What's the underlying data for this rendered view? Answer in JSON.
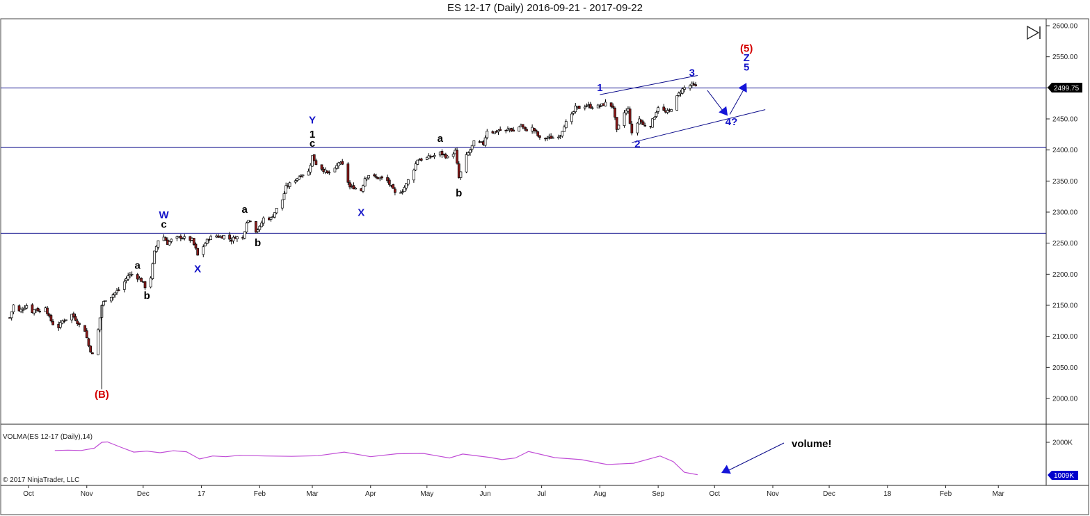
{
  "window": {
    "title": "ES 12-17 (Daily)  2016-09-21 - 2017-09-22",
    "copyright": "© 2017 NinjaTrader, LLC"
  },
  "toolbar": {
    "play_end_icon": "skip-to-end-icon"
  },
  "colors": {
    "up_candle": "#ffffff",
    "down_candle": "#8b1a1a",
    "wick": "#000000",
    "hline": "#0a0a8a",
    "wave_blue": "#1515c8",
    "wave_red": "#d40000",
    "wave_black": "#000000",
    "volume_line": "#c04dd6",
    "price_tag_bg": "#000000",
    "vol_tag_bg": "#0000cc"
  },
  "chart_data": [
    {
      "type": "candlestick",
      "title": "ES 12-17 (Daily)  2016-09-21 - 2017-09-22",
      "x_ticks": [
        "Oct",
        "Nov",
        "Dec",
        "17",
        "Feb",
        "Mar",
        "Apr",
        "May",
        "Jun",
        "Jul",
        "Aug",
        "Sep",
        "Oct",
        "Nov",
        "Dec",
        "18",
        "Feb",
        "Mar"
      ],
      "y_ticks": [
        2000,
        2050,
        2100,
        2150,
        2200,
        2250,
        2300,
        2350,
        2400,
        2450,
        2500,
        2550,
        2600
      ],
      "ylim": [
        1960,
        2602
      ],
      "grid": false,
      "last_price": "2499.75",
      "horizontal_levels": [
        2499.75,
        2404,
        2266
      ],
      "channel_lines": [
        {
          "from": [
            "2017-08-01",
            2489
          ],
          "to": [
            "2017-09-22",
            2520
          ]
        },
        {
          "from": [
            "2017-08-18",
            2412
          ],
          "to": [
            "2017-10-28",
            2465
          ]
        }
      ],
      "projection_path": [
        [
          "2017-09-22",
          2496
        ],
        [
          "2017-10-08",
          2455
        ],
        [
          "2017-10-18",
          2508
        ]
      ],
      "wave_labels": [
        {
          "text": "(5)",
          "date": "2017-10-18",
          "price": 2558,
          "color": "red"
        },
        {
          "text": "Z",
          "date": "2017-10-18",
          "price": 2543,
          "color": "blue"
        },
        {
          "text": "5",
          "date": "2017-10-18",
          "price": 2528,
          "color": "blue"
        },
        {
          "text": "3",
          "date": "2017-09-19",
          "price": 2519,
          "color": "blue"
        },
        {
          "text": "1",
          "date": "2017-08-01",
          "price": 2495,
          "color": "blue"
        },
        {
          "text": "2",
          "date": "2017-08-21",
          "price": 2404,
          "color": "blue"
        },
        {
          "text": "4?",
          "date": "2017-10-10",
          "price": 2440,
          "color": "blue"
        },
        {
          "text": "Y",
          "date": "2017-03-01",
          "price": 2443,
          "color": "blue"
        },
        {
          "text": "1",
          "date": "2017-03-01",
          "price": 2420,
          "color": "black"
        },
        {
          "text": "c",
          "date": "2017-03-01",
          "price": 2405,
          "color": "black"
        },
        {
          "text": "X",
          "date": "2017-03-27",
          "price": 2294,
          "color": "blue"
        },
        {
          "text": "a",
          "date": "2017-05-08",
          "price": 2413,
          "color": "black"
        },
        {
          "text": "b",
          "date": "2017-05-18",
          "price": 2325,
          "color": "black"
        },
        {
          "text": "W",
          "date": "2016-12-12",
          "price": 2290,
          "color": "blue"
        },
        {
          "text": "c",
          "date": "2016-12-12",
          "price": 2275,
          "color": "black"
        },
        {
          "text": "X",
          "date": "2016-12-30",
          "price": 2203,
          "color": "blue"
        },
        {
          "text": "a",
          "date": "2017-01-24",
          "price": 2299,
          "color": "black"
        },
        {
          "text": "b",
          "date": "2017-01-31",
          "price": 2245,
          "color": "black"
        },
        {
          "text": "a",
          "date": "2016-11-28",
          "price": 2209,
          "color": "black"
        },
        {
          "text": "b",
          "date": "2016-12-03",
          "price": 2160,
          "color": "black"
        },
        {
          "text": "(B)",
          "date": "2016-11-09",
          "price": 2001,
          "color": "red"
        }
      ],
      "series": [
        {
          "name": "ES 12-17",
          "points": [
            [
              "2016-09-21",
              2130
            ],
            [
              "2016-09-23",
              2150
            ],
            [
              "2016-09-26",
              2140
            ],
            [
              "2016-09-28",
              2145
            ],
            [
              "2016-09-30",
              2150
            ],
            [
              "2016-10-03",
              2140
            ],
            [
              "2016-10-05",
              2145
            ],
            [
              "2016-10-07",
              2140
            ],
            [
              "2016-10-10",
              2148
            ],
            [
              "2016-10-12",
              2130
            ],
            [
              "2016-10-14",
              2120
            ],
            [
              "2016-10-17",
              2115
            ],
            [
              "2016-10-19",
              2125
            ],
            [
              "2016-10-21",
              2128
            ],
            [
              "2016-10-24",
              2135
            ],
            [
              "2016-10-26",
              2128
            ],
            [
              "2016-10-28",
              2118
            ],
            [
              "2016-10-31",
              2110
            ],
            [
              "2016-11-02",
              2085
            ],
            [
              "2016-11-04",
              2070
            ],
            [
              "2016-11-07",
              2110
            ],
            [
              "2016-11-08",
              2130
            ],
            [
              "2016-11-09",
              2150
            ],
            [
              "2016-11-11",
              2160
            ],
            [
              "2016-11-14",
              2165
            ],
            [
              "2016-11-16",
              2170
            ],
            [
              "2016-11-18",
              2175
            ],
            [
              "2016-11-21",
              2188
            ],
            [
              "2016-11-23",
              2198
            ],
            [
              "2016-11-25",
              2200
            ],
            [
              "2016-11-28",
              2195
            ],
            [
              "2016-11-30",
              2190
            ],
            [
              "2016-12-02",
              2180
            ],
            [
              "2016-12-05",
              2195
            ],
            [
              "2016-12-07",
              2235
            ],
            [
              "2016-12-09",
              2255
            ],
            [
              "2016-12-12",
              2260
            ],
            [
              "2016-12-14",
              2250
            ],
            [
              "2016-12-16",
              2255
            ],
            [
              "2016-12-19",
              2258
            ],
            [
              "2016-12-21",
              2260
            ],
            [
              "2016-12-23",
              2258
            ],
            [
              "2016-12-27",
              2255
            ],
            [
              "2016-12-29",
              2240
            ],
            [
              "2016-12-30",
              2230
            ],
            [
              "2017-01-03",
              2250
            ],
            [
              "2017-01-05",
              2258
            ],
            [
              "2017-01-09",
              2262
            ],
            [
              "2017-01-11",
              2260
            ],
            [
              "2017-01-13",
              2262
            ],
            [
              "2017-01-17",
              2255
            ],
            [
              "2017-01-19",
              2260
            ],
            [
              "2017-01-23",
              2258
            ],
            [
              "2017-01-25",
              2285
            ],
            [
              "2017-01-27",
              2288
            ],
            [
              "2017-01-30",
              2270
            ],
            [
              "2017-02-01",
              2275
            ],
            [
              "2017-02-03",
              2290
            ],
            [
              "2017-02-07",
              2290
            ],
            [
              "2017-02-09",
              2300
            ],
            [
              "2017-02-13",
              2320
            ],
            [
              "2017-02-15",
              2340
            ],
            [
              "2017-02-17",
              2345
            ],
            [
              "2017-02-21",
              2355
            ],
            [
              "2017-02-23",
              2360
            ],
            [
              "2017-02-27",
              2365
            ],
            [
              "2017-03-01",
              2390
            ],
            [
              "2017-03-03",
              2378
            ],
            [
              "2017-03-07",
              2368
            ],
            [
              "2017-03-09",
              2362
            ],
            [
              "2017-03-13",
              2368
            ],
            [
              "2017-03-15",
              2380
            ],
            [
              "2017-03-17",
              2375
            ],
            [
              "2017-03-21",
              2340
            ],
            [
              "2017-03-23",
              2340
            ],
            [
              "2017-03-27",
              2335
            ],
            [
              "2017-03-29",
              2355
            ],
            [
              "2017-03-31",
              2360
            ],
            [
              "2017-04-04",
              2355
            ],
            [
              "2017-04-06",
              2355
            ],
            [
              "2017-04-10",
              2350
            ],
            [
              "2017-04-12",
              2340
            ],
            [
              "2017-04-14",
              2330
            ],
            [
              "2017-04-18",
              2335
            ],
            [
              "2017-04-20",
              2345
            ],
            [
              "2017-04-24",
              2370
            ],
            [
              "2017-04-26",
              2385
            ],
            [
              "2017-04-28",
              2385
            ],
            [
              "2017-05-02",
              2388
            ],
            [
              "2017-05-04",
              2390
            ],
            [
              "2017-05-08",
              2395
            ],
            [
              "2017-05-10",
              2392
            ],
            [
              "2017-05-12",
              2388
            ],
            [
              "2017-05-16",
              2398
            ],
            [
              "2017-05-18",
              2355
            ],
            [
              "2017-05-22",
              2390
            ],
            [
              "2017-05-24",
              2400
            ],
            [
              "2017-05-26",
              2412
            ],
            [
              "2017-05-31",
              2410
            ],
            [
              "2017-06-02",
              2432
            ],
            [
              "2017-06-06",
              2428
            ],
            [
              "2017-06-08",
              2432
            ],
            [
              "2017-06-12",
              2430
            ],
            [
              "2017-06-14",
              2435
            ],
            [
              "2017-06-16",
              2430
            ],
            [
              "2017-06-20",
              2440
            ],
            [
              "2017-06-22",
              2432
            ],
            [
              "2017-06-26",
              2435
            ],
            [
              "2017-06-28",
              2428
            ],
            [
              "2017-06-30",
              2418
            ],
            [
              "2017-07-05",
              2420
            ],
            [
              "2017-07-07",
              2420
            ],
            [
              "2017-07-11",
              2425
            ],
            [
              "2017-07-13",
              2440
            ],
            [
              "2017-07-17",
              2455
            ],
            [
              "2017-07-19",
              2468
            ],
            [
              "2017-07-21",
              2468
            ],
            [
              "2017-07-25",
              2472
            ],
            [
              "2017-07-27",
              2470
            ],
            [
              "2017-07-31",
              2470
            ],
            [
              "2017-08-02",
              2472
            ],
            [
              "2017-08-04",
              2475
            ],
            [
              "2017-08-08",
              2470
            ],
            [
              "2017-08-10",
              2430
            ],
            [
              "2017-08-14",
              2460
            ],
            [
              "2017-08-16",
              2465
            ],
            [
              "2017-08-18",
              2425
            ],
            [
              "2017-08-22",
              2450
            ],
            [
              "2017-08-24",
              2440
            ],
            [
              "2017-08-28",
              2440
            ],
            [
              "2017-08-30",
              2455
            ],
            [
              "2017-09-01",
              2470
            ],
            [
              "2017-09-05",
              2460
            ],
            [
              "2017-09-07",
              2462
            ],
            [
              "2017-09-11",
              2485
            ],
            [
              "2017-09-13",
              2495
            ],
            [
              "2017-09-15",
              2500
            ],
            [
              "2017-09-19",
              2505
            ],
            [
              "2017-09-22",
              2499.75
            ]
          ]
        }
      ]
    },
    {
      "type": "line",
      "title": "VOLMA(ES 12-17 (Daily),14)",
      "y_ticks": [
        "2000K"
      ],
      "last_value": "1009K",
      "annotation": "volume!",
      "series": [
        {
          "name": "VOLMA",
          "x": [
            "2016-10-15",
            "2016-10-22",
            "2016-10-29",
            "2016-11-05",
            "2016-11-09",
            "2016-11-12",
            "2016-11-19",
            "2016-11-26",
            "2016-12-03",
            "2016-12-10",
            "2016-12-17",
            "2016-12-24",
            "2016-12-31",
            "2017-01-07",
            "2017-01-14",
            "2017-01-21",
            "2017-02-04",
            "2017-02-18",
            "2017-03-04",
            "2017-03-18",
            "2017-04-01",
            "2017-04-15",
            "2017-04-29",
            "2017-05-13",
            "2017-05-20",
            "2017-06-03",
            "2017-06-10",
            "2017-06-17",
            "2017-06-24",
            "2017-07-08",
            "2017-07-22",
            "2017-08-05",
            "2017-08-19",
            "2017-09-02",
            "2017-09-09",
            "2017-09-15",
            "2017-09-22"
          ],
          "values": [
            1750,
            1760,
            1750,
            1820,
            2000,
            2010,
            1850,
            1700,
            1730,
            1680,
            1740,
            1710,
            1490,
            1580,
            1560,
            1600,
            1580,
            1570,
            1590,
            1700,
            1560,
            1650,
            1660,
            1520,
            1640,
            1540,
            1470,
            1520,
            1720,
            1530,
            1470,
            1320,
            1360,
            1580,
            1410,
            1080,
            1009
          ]
        }
      ]
    }
  ]
}
